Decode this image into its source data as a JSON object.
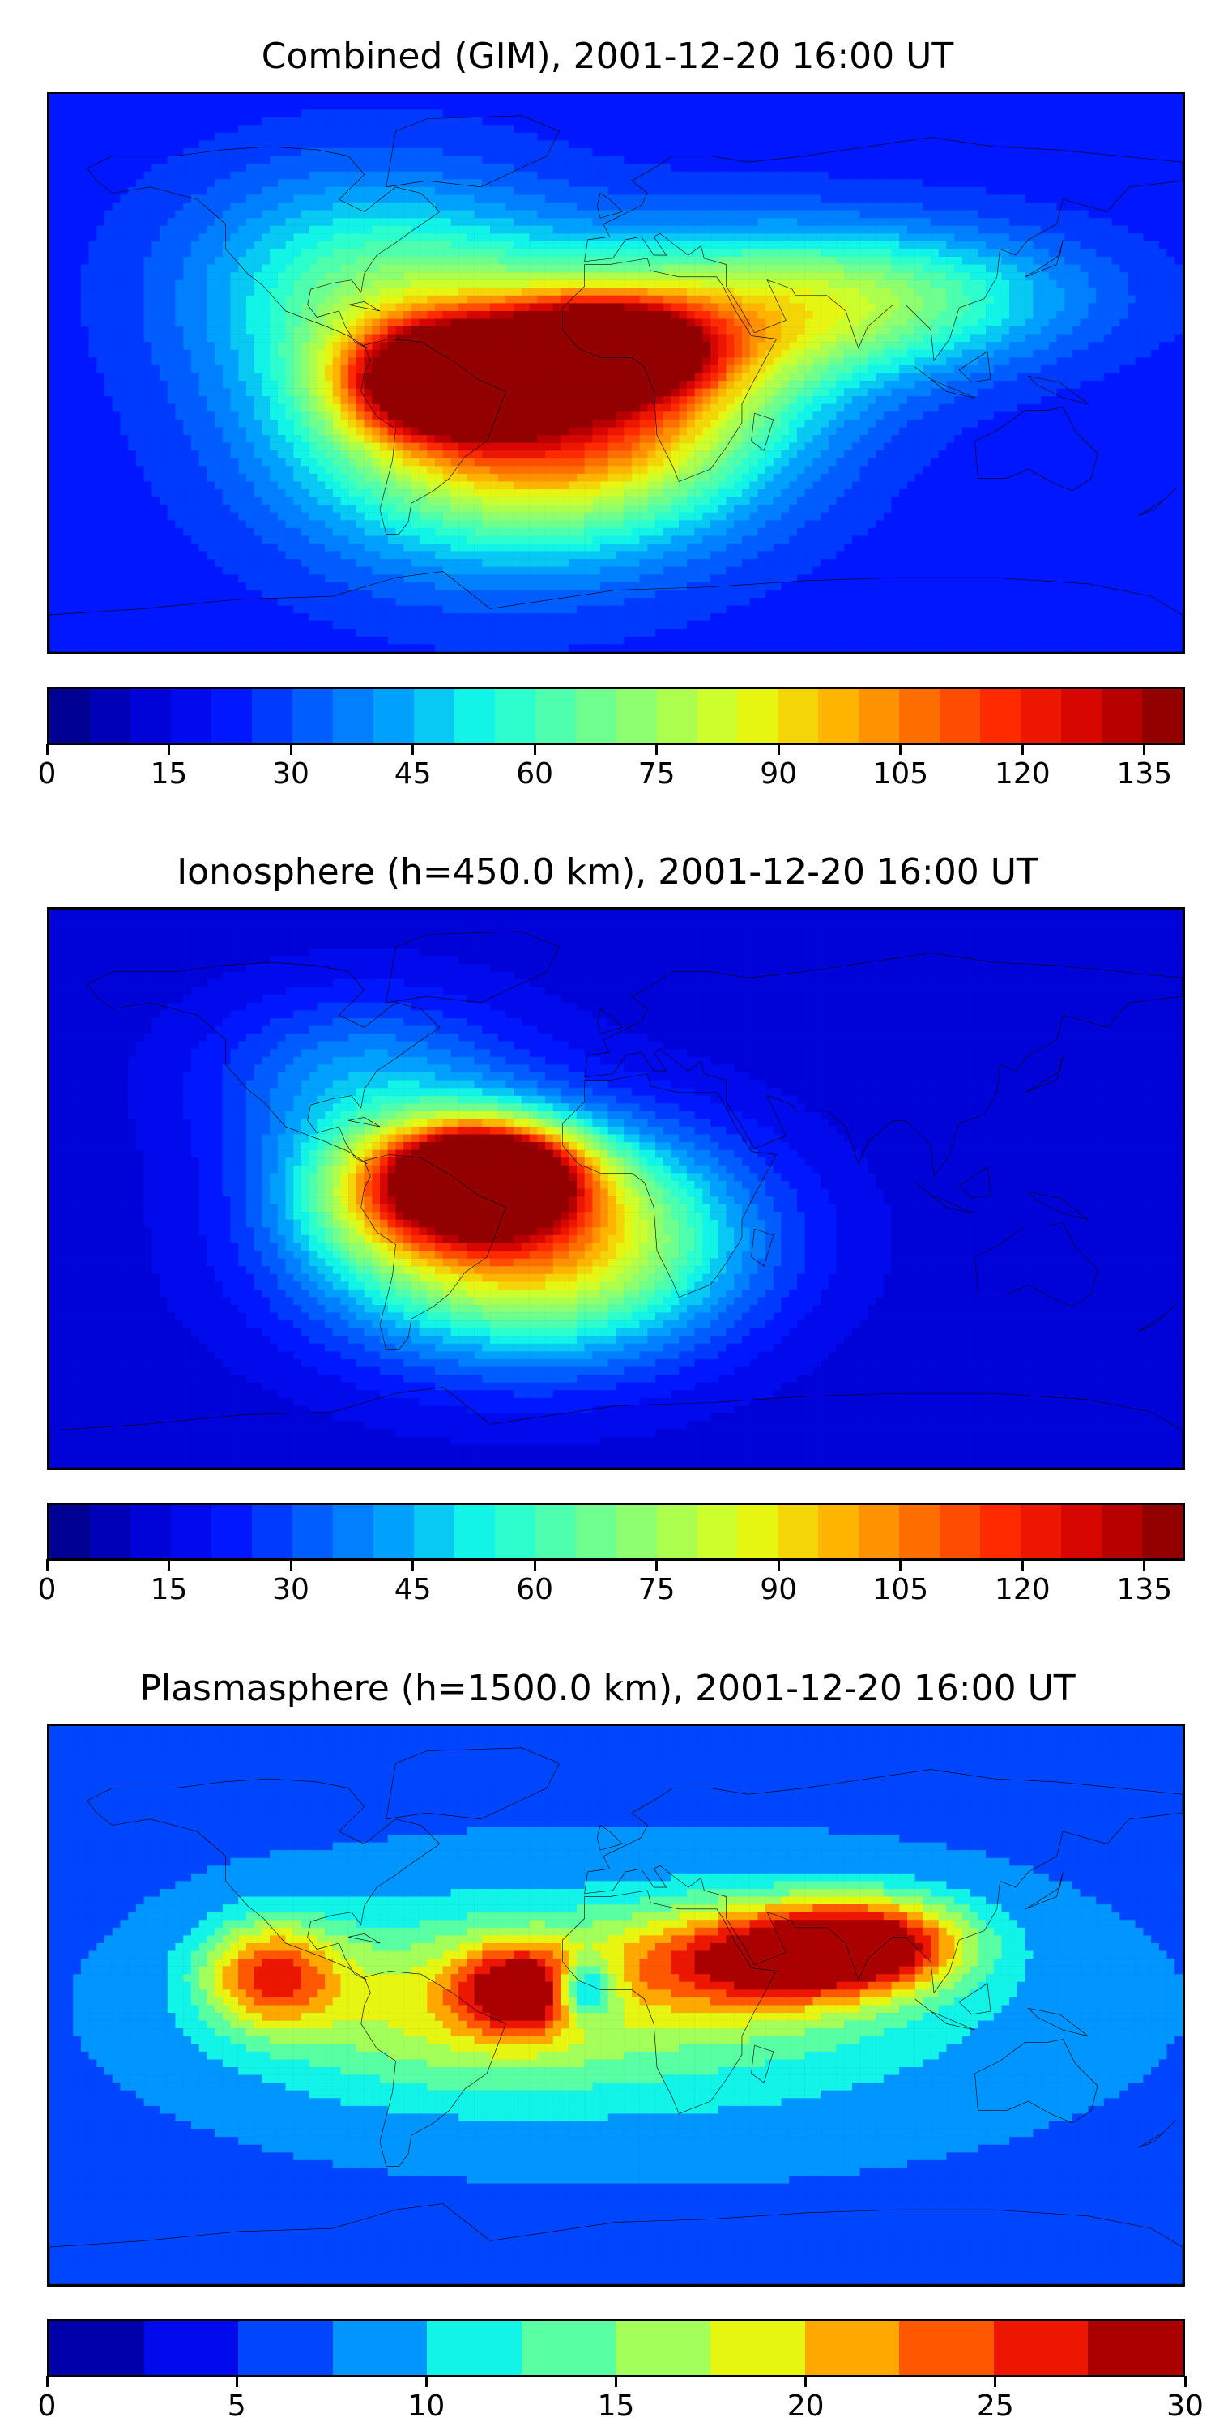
{
  "panels": [
    {
      "title": "Combined (GIM), 2001-12-20 16:00 UT",
      "colorbar": {
        "min": 0,
        "max": 140,
        "levels": 28,
        "tick_labels": [
          "0",
          "15",
          "30",
          "45",
          "60",
          "75",
          "90",
          "105",
          "120",
          "135"
        ],
        "tick_values": [
          0,
          15,
          30,
          45,
          60,
          75,
          90,
          105,
          120,
          135
        ]
      },
      "field": {
        "background_value": 22,
        "features": [
          {
            "lon": -55,
            "lat": -2,
            "value": 128,
            "sx": 20,
            "sy": 12
          },
          {
            "lon": -5,
            "lat": 8,
            "value": 130,
            "sx": 22,
            "sy": 10
          },
          {
            "lon": -40,
            "lat": -15,
            "value": 85,
            "sx": 45,
            "sy": 30
          },
          {
            "lon": 0,
            "lat": -10,
            "value": 78,
            "sx": 40,
            "sy": 25
          },
          {
            "lon": -80,
            "lat": 30,
            "value": 55,
            "sx": 40,
            "sy": 25
          },
          {
            "lon": 50,
            "lat": 20,
            "value": 65,
            "sx": 40,
            "sy": 18
          },
          {
            "lon": 100,
            "lat": 25,
            "value": 48,
            "sx": 40,
            "sy": 15
          }
        ]
      }
    },
    {
      "title": "Ionosphere  (h=450.0 km), 2001-12-20 16:00 UT",
      "colorbar": {
        "min": 0,
        "max": 140,
        "levels": 28,
        "tick_labels": [
          "0",
          "15",
          "30",
          "45",
          "60",
          "75",
          "90",
          "105",
          "120",
          "135"
        ],
        "tick_values": [
          0,
          15,
          30,
          45,
          60,
          75,
          90,
          105,
          120,
          135
        ]
      },
      "field": {
        "background_value": 12,
        "features": [
          {
            "lon": -40,
            "lat": 5,
            "value": 120,
            "sx": 18,
            "sy": 10
          },
          {
            "lon": -55,
            "lat": 0,
            "value": 85,
            "sx": 28,
            "sy": 15
          },
          {
            "lon": -40,
            "lat": -20,
            "value": 60,
            "sx": 45,
            "sy": 25
          },
          {
            "lon": -10,
            "lat": -15,
            "value": 55,
            "sx": 40,
            "sy": 25
          },
          {
            "lon": -80,
            "lat": 35,
            "value": 40,
            "sx": 35,
            "sy": 20
          }
        ]
      }
    },
    {
      "title": "Plasmasphere (h=1500.0 km), 2001-12-20 16:00 UT",
      "colorbar": {
        "min": 0,
        "max": 30,
        "levels": 12,
        "tick_labels": [
          "0",
          "5",
          "10",
          "15",
          "20",
          "25",
          "30"
        ],
        "tick_values": [
          0,
          5,
          10,
          15,
          20,
          25,
          30
        ]
      },
      "field": {
        "background_value": 7,
        "features": [
          {
            "lon": 45,
            "lat": 15,
            "value": 23,
            "sx": 30,
            "sy": 12
          },
          {
            "lon": 80,
            "lat": 20,
            "value": 26,
            "sx": 22,
            "sy": 10
          },
          {
            "lon": -30,
            "lat": 5,
            "value": 23,
            "sx": 14,
            "sy": 10
          },
          {
            "lon": -110,
            "lat": 10,
            "value": 22,
            "sx": 15,
            "sy": 12
          },
          {
            "lon": 20,
            "lat": 0,
            "value": 14,
            "sx": 70,
            "sy": 25
          },
          {
            "lon": -60,
            "lat": 0,
            "value": 15,
            "sx": 45,
            "sy": 20
          },
          {
            "lon": -10,
            "lat": 5,
            "value": -8,
            "sx": 7,
            "sy": 7
          }
        ]
      }
    }
  ],
  "colormap": [
    "#00007f",
    "#0000d0",
    "#0010ff",
    "#005cff",
    "#00a4ff",
    "#13ffe4",
    "#5cffa0",
    "#a0ff5c",
    "#e4ff13",
    "#ffb900",
    "#ff6e00",
    "#ff2300",
    "#d00000",
    "#7f0000"
  ]
}
